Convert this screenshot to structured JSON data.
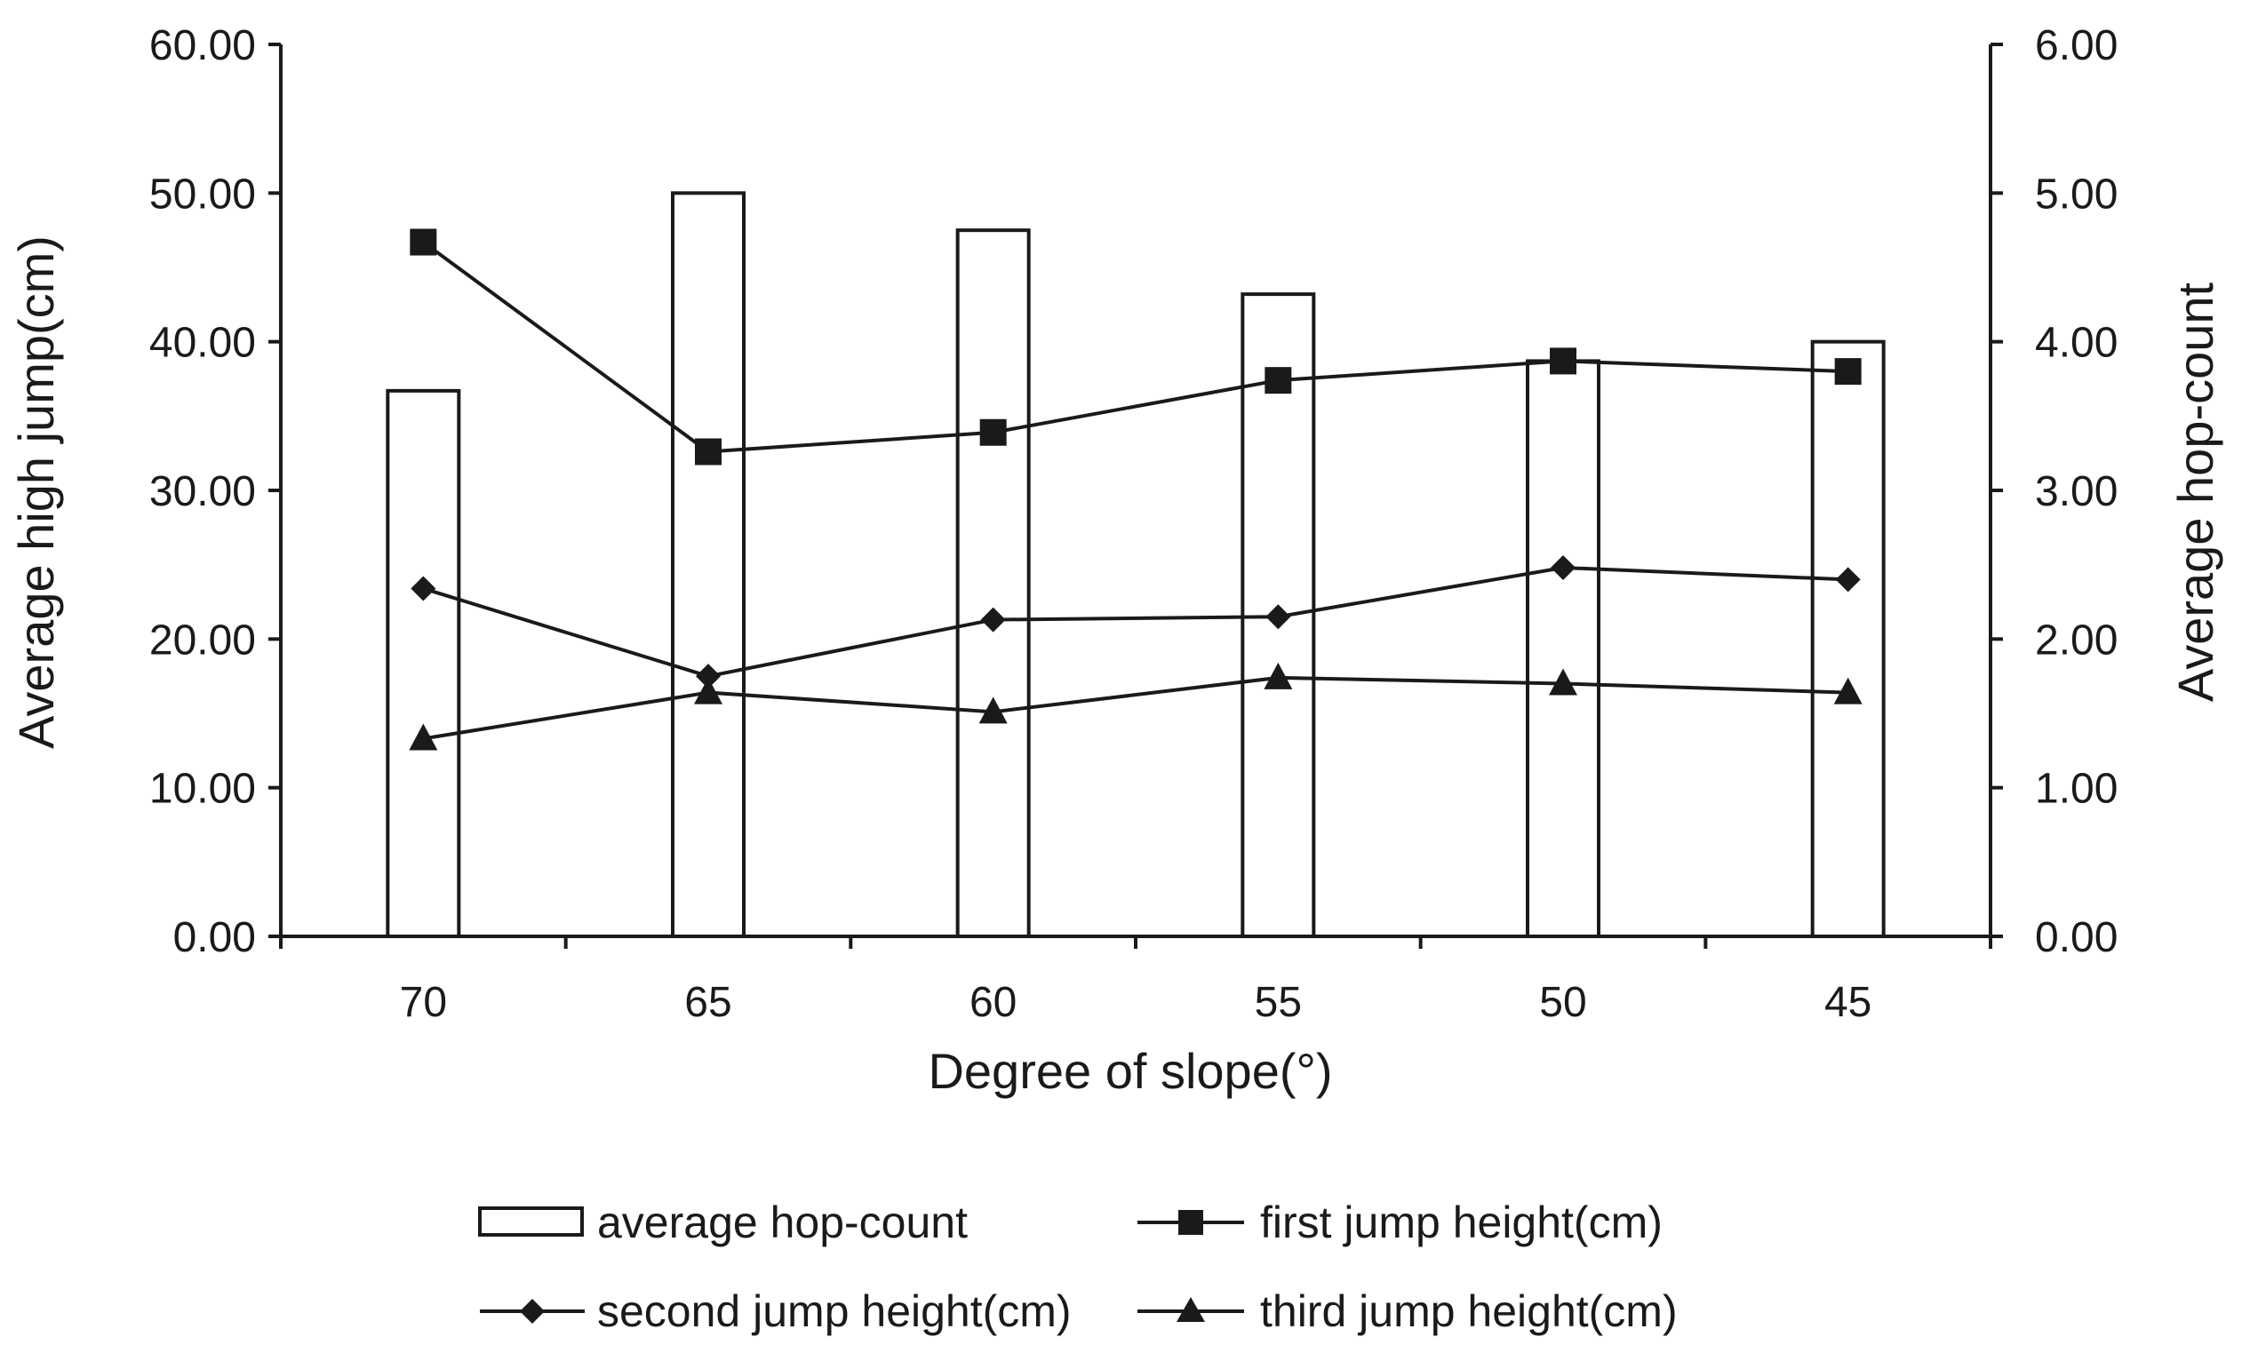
{
  "chart_data": {
    "type": "bar+line",
    "categories": [
      "70",
      "65",
      "60",
      "55",
      "50",
      "45"
    ],
    "xlabel": "Degree of slope(°)",
    "ylabel_left": "Average high jump(cm)",
    "ylabel_right": "Average hop-count",
    "ylim_left": [
      0,
      60
    ],
    "ylim_right": [
      0,
      6
    ],
    "left_ticks": [
      "0.00",
      "10.00",
      "20.00",
      "30.00",
      "40.00",
      "50.00",
      "60.00"
    ],
    "right_ticks": [
      "0.00",
      "1.00",
      "2.00",
      "3.00",
      "4.00",
      "5.00",
      "6.00"
    ],
    "grid": false,
    "legend_position": "bottom",
    "series": [
      {
        "name": "average hop-count",
        "kind": "bar",
        "axis": "right",
        "values": [
          3.67,
          5.0,
          4.75,
          4.32,
          3.87,
          4.0
        ]
      },
      {
        "name": "first jump height(cm)",
        "kind": "line",
        "marker": "square",
        "axis": "left",
        "values": [
          46.7,
          32.6,
          33.9,
          37.4,
          38.7,
          38.0
        ]
      },
      {
        "name": "second jump height(cm)",
        "kind": "line",
        "marker": "diamond",
        "axis": "left",
        "values": [
          23.4,
          17.5,
          21.3,
          21.5,
          24.8,
          24.0
        ]
      },
      {
        "name": "third jump height(cm)",
        "kind": "line",
        "marker": "triangle",
        "axis": "left",
        "values": [
          13.3,
          16.4,
          15.1,
          17.4,
          17.0,
          16.4
        ]
      }
    ]
  },
  "colors": {
    "ink": "#1a1a1a",
    "bar_fill": "#ffffff"
  }
}
